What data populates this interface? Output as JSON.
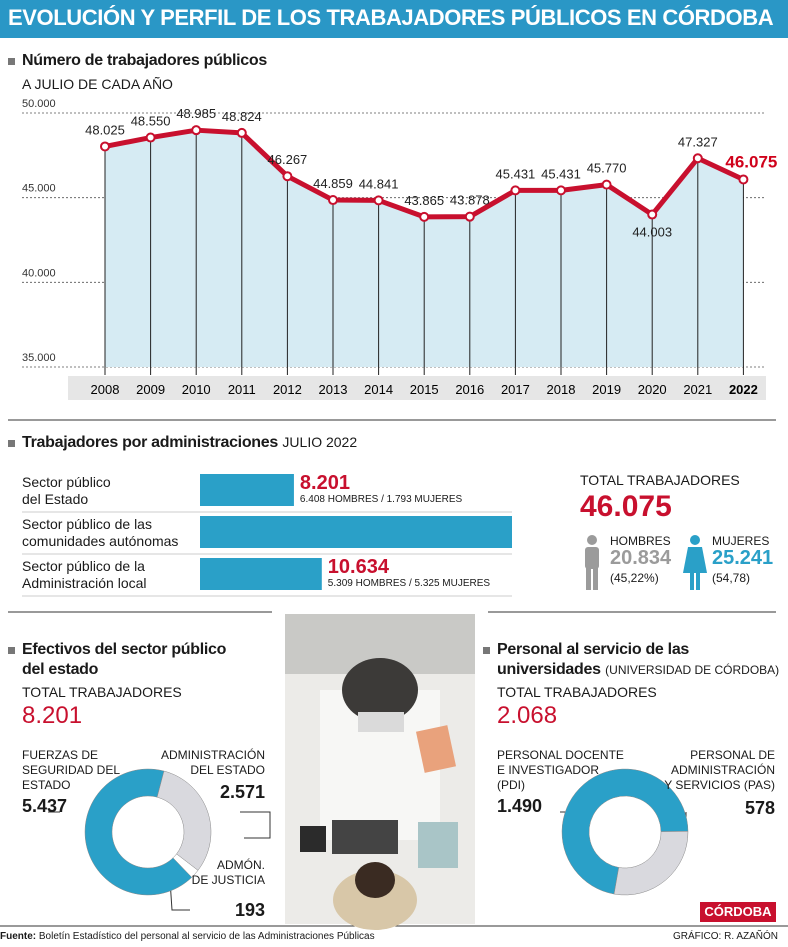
{
  "title": "EVOLUCIÓN Y PERFIL DE LOS TRABAJADORES PÚBLICOS EN CÓRDOBA",
  "chart_data": [
    {
      "type": "line",
      "title": "Número de trabajadores públicos",
      "subtitle": "A JULIO DE CADA AÑO",
      "categories": [
        "2008",
        "2009",
        "2010",
        "2011",
        "2012",
        "2013",
        "2014",
        "2015",
        "2016",
        "2017",
        "2018",
        "2019",
        "2020",
        "2021",
        "2022"
      ],
      "values": [
        48025,
        48550,
        48985,
        48824,
        46267,
        44859,
        44841,
        43865,
        43878,
        45431,
        45431,
        45770,
        44003,
        47327,
        46075
      ],
      "value_labels": [
        "48.025",
        "48.550",
        "48.985",
        "48.824",
        "46.267",
        "44.859",
        "44.841",
        "43.865",
        "43.878",
        "45.431",
        "45.431",
        "45.770",
        "44.003",
        "47.327",
        "46.075"
      ],
      "color": "#c8102e",
      "area_color": "#d6ebf3",
      "highlight_color": "#d0021b",
      "ylim": [
        35000,
        50000
      ],
      "yticks": [
        {
          "value": 35000,
          "label": "35.000"
        },
        {
          "value": 40000,
          "label": "40.000"
        },
        {
          "value": 45000,
          "label": "45.000"
        },
        {
          "value": 50000,
          "label": "50.000"
        }
      ],
      "grid": true
    },
    {
      "type": "bar",
      "title": "Trabajadores por administraciones",
      "subtitle": "JULIO 2022",
      "categories": [
        "Sector público\ndel Estado",
        "Sector público de las\ncomunidades autónomas",
        "Sector público de la\nAdministración local"
      ],
      "values": [
        8201,
        27240,
        10634
      ],
      "value_labels": [
        "8.201",
        null,
        "10.634"
      ],
      "notes": [
        "6.408 HOMBRES / 1.793 MUJERES",
        null,
        "5.309 HOMBRES / 5.325 MUJERES"
      ],
      "color": "#2aa0c8",
      "label_color": "#c8102e",
      "total_label": "TOTAL TRABAJADORES",
      "total": "46.075",
      "men": {
        "label": "HOMBRES",
        "value": "20.834",
        "share": "(45,22%)",
        "color": "#9b9b9b"
      },
      "women": {
        "label": "MUJERES",
        "value": "25.241",
        "share": "(54,78)",
        "color": "#2aa0c8"
      }
    },
    {
      "type": "donut",
      "title": "Efectivos del sector público\ndel estado",
      "total_label": "TOTAL TRABAJADORES",
      "total": "8.201",
      "categories": [
        "FUERZAS DE\nSEGURIDAD DEL\nESTADO",
        "ADMINISTRACIÓN\nDEL ESTADO",
        "ADMÓN.\nDE JUSTICIA"
      ],
      "values": [
        5437,
        2571,
        193
      ],
      "value_labels": [
        "5.437",
        "2.571",
        "193"
      ],
      "colors": [
        "#2aa0c8",
        "#d9d9de",
        "#ffffff"
      ]
    },
    {
      "type": "donut",
      "title": "Personal al servicio de las\nuniversidades",
      "subtitle": "(UNIVERSIDAD DE CÓRDOBA)",
      "total_label": "TOTAL TRABAJADORES",
      "total": "2.068",
      "categories": [
        "PERSONAL DOCENTE\nE INVESTIGADOR\n(PDI)",
        "PERSONAL DE\nADMINISTRACIÓN\nY SERVICIOS (PAS)"
      ],
      "values": [
        1490,
        578
      ],
      "value_labels": [
        "1.490",
        "578"
      ],
      "colors": [
        "#2aa0c8",
        "#d9d9de"
      ]
    }
  ],
  "footer": {
    "source_label": "Fuente:",
    "source": "Boletín Estadístico del personal al servicio de las Administraciones Públicas",
    "credit": "GRÁFICO: R. AZAÑÓN",
    "logo": "CÓRDOBA"
  }
}
